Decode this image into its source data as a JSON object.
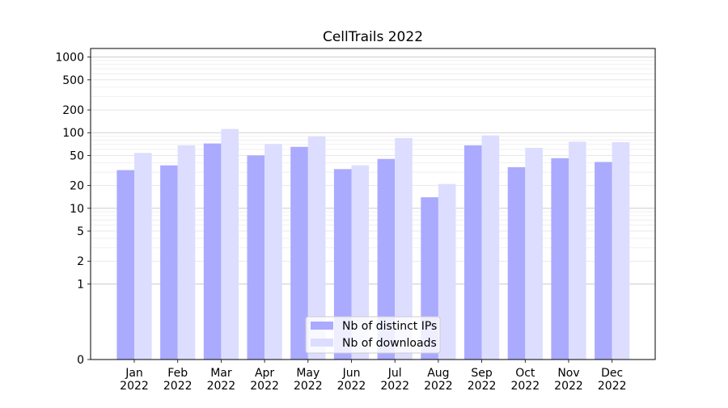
{
  "chart_data": {
    "type": "bar",
    "title": "CellTrails 2022",
    "xlabel": "",
    "ylabel": "",
    "y_scale": "symlog",
    "ylim": [
      0,
      1300
    ],
    "y_ticks": [
      {
        "value": 0,
        "label": "0"
      },
      {
        "value": 1,
        "label": "1"
      },
      {
        "value": 2,
        "label": "2"
      },
      {
        "value": 5,
        "label": "5"
      },
      {
        "value": 10,
        "label": "10"
      },
      {
        "value": 20,
        "label": "20"
      },
      {
        "value": 50,
        "label": "50"
      },
      {
        "value": 100,
        "label": "100"
      },
      {
        "value": 200,
        "label": "200"
      },
      {
        "value": 500,
        "label": "500"
      },
      {
        "value": 1000,
        "label": "1000"
      }
    ],
    "categories": [
      {
        "month": "Jan",
        "year": "2022"
      },
      {
        "month": "Feb",
        "year": "2022"
      },
      {
        "month": "Mar",
        "year": "2022"
      },
      {
        "month": "Apr",
        "year": "2022"
      },
      {
        "month": "May",
        "year": "2022"
      },
      {
        "month": "Jun",
        "year": "2022"
      },
      {
        "month": "Jul",
        "year": "2022"
      },
      {
        "month": "Aug",
        "year": "2022"
      },
      {
        "month": "Sep",
        "year": "2022"
      },
      {
        "month": "Oct",
        "year": "2022"
      },
      {
        "month": "Nov",
        "year": "2022"
      },
      {
        "month": "Dec",
        "year": "2022"
      }
    ],
    "series": [
      {
        "name": "Nb of distinct IPs",
        "color": "#aaaaff",
        "values": [
          32,
          37,
          72,
          50,
          65,
          33,
          45,
          14,
          68,
          35,
          46,
          41
        ]
      },
      {
        "name": "Nb of downloads",
        "color": "#ddddff",
        "values": [
          54,
          68,
          112,
          71,
          89,
          37,
          85,
          21,
          92,
          63,
          76,
          75
        ]
      }
    ],
    "grid": "horizontal, major and minor",
    "legend_position": "lower center"
  }
}
